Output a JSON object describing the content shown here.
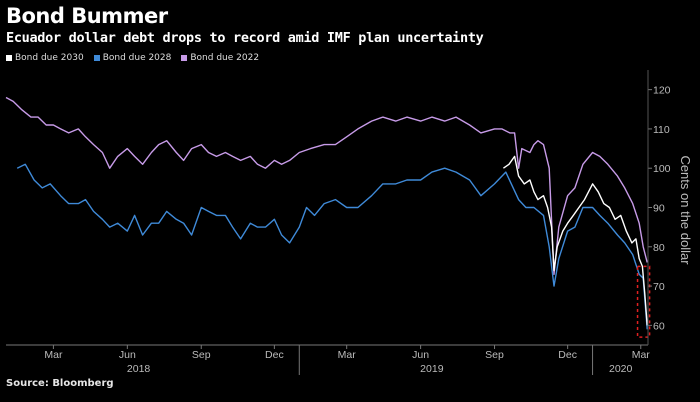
{
  "header": {
    "title": "Bond Bummer",
    "subtitle": "Ecuador dollar debt drops to record amid IMF plan uncertainty"
  },
  "source": "Source: Bloomberg",
  "chart_data": {
    "type": "line",
    "title": "Bond Bummer",
    "subtitle": "Ecuador dollar debt drops to record amid IMF plan uncertainty",
    "ylabel": "Cents on the dollar",
    "ylim": [
      55,
      125
    ],
    "yticks": [
      60,
      70,
      80,
      90,
      100,
      110,
      120
    ],
    "xlim": [
      "2018-01-01",
      "2020-03-10"
    ],
    "month_ticks": [
      {
        "label": "Mar",
        "date": "2018-03-01"
      },
      {
        "label": "Jun",
        "date": "2018-06-01"
      },
      {
        "label": "Sep",
        "date": "2018-09-01"
      },
      {
        "label": "Dec",
        "date": "2018-12-01"
      },
      {
        "label": "Mar",
        "date": "2019-03-01"
      },
      {
        "label": "Jun",
        "date": "2019-06-01"
      },
      {
        "label": "Sep",
        "date": "2019-09-01"
      },
      {
        "label": "Dec",
        "date": "2019-12-01"
      },
      {
        "label": "Mar",
        "date": "2020-03-01"
      }
    ],
    "year_ticks": [
      {
        "label": "2018",
        "date": "2018-06-15"
      },
      {
        "label": "2019",
        "date": "2019-06-15"
      },
      {
        "label": "2020",
        "date": "2020-02-05"
      }
    ],
    "year_dividers": [
      "2019-01-01",
      "2020-01-01"
    ],
    "y_axis_position": "right",
    "legend_position": "top-left",
    "grid": false,
    "series": [
      {
        "name": "Bond due 2030",
        "color": "#ffffff",
        "points": [
          [
            "2019-09-12",
            100
          ],
          [
            "2019-09-19",
            101
          ],
          [
            "2019-09-26",
            103
          ],
          [
            "2019-10-01",
            98
          ],
          [
            "2019-10-08",
            96
          ],
          [
            "2019-10-15",
            97
          ],
          [
            "2019-10-20",
            94
          ],
          [
            "2019-10-25",
            92
          ],
          [
            "2019-11-01",
            93
          ],
          [
            "2019-11-06",
            90
          ],
          [
            "2019-11-11",
            85
          ],
          [
            "2019-11-14",
            74
          ],
          [
            "2019-11-18",
            80
          ],
          [
            "2019-11-25",
            84
          ],
          [
            "2019-12-01",
            86
          ],
          [
            "2019-12-08",
            88
          ],
          [
            "2019-12-15",
            90
          ],
          [
            "2019-12-22",
            92
          ],
          [
            "2020-01-01",
            96
          ],
          [
            "2020-01-08",
            94
          ],
          [
            "2020-01-15",
            91
          ],
          [
            "2020-01-22",
            90
          ],
          [
            "2020-01-29",
            87
          ],
          [
            "2020-02-05",
            88
          ],
          [
            "2020-02-12",
            84
          ],
          [
            "2020-02-19",
            81
          ],
          [
            "2020-02-24",
            82
          ],
          [
            "2020-02-28",
            77
          ],
          [
            "2020-03-03",
            75
          ],
          [
            "2020-03-06",
            68
          ],
          [
            "2020-03-09",
            60
          ]
        ]
      },
      {
        "name": "Bond due 2028",
        "color": "#3f8ad8",
        "points": [
          [
            "2018-01-15",
            100
          ],
          [
            "2018-01-25",
            101
          ],
          [
            "2018-02-05",
            97
          ],
          [
            "2018-02-15",
            95
          ],
          [
            "2018-02-25",
            96
          ],
          [
            "2018-03-10",
            93
          ],
          [
            "2018-03-20",
            91
          ],
          [
            "2018-04-01",
            91
          ],
          [
            "2018-04-10",
            92
          ],
          [
            "2018-04-20",
            89
          ],
          [
            "2018-05-01",
            87
          ],
          [
            "2018-05-10",
            85
          ],
          [
            "2018-05-20",
            86
          ],
          [
            "2018-06-01",
            84
          ],
          [
            "2018-06-10",
            88
          ],
          [
            "2018-06-20",
            83
          ],
          [
            "2018-07-01",
            86
          ],
          [
            "2018-07-10",
            86
          ],
          [
            "2018-07-20",
            89
          ],
          [
            "2018-08-01",
            87
          ],
          [
            "2018-08-10",
            86
          ],
          [
            "2018-08-20",
            83
          ],
          [
            "2018-09-01",
            90
          ],
          [
            "2018-09-10",
            89
          ],
          [
            "2018-09-20",
            88
          ],
          [
            "2018-10-01",
            88
          ],
          [
            "2018-10-10",
            85
          ],
          [
            "2018-10-20",
            82
          ],
          [
            "2018-11-01",
            86
          ],
          [
            "2018-11-10",
            85
          ],
          [
            "2018-11-20",
            85
          ],
          [
            "2018-12-01",
            87
          ],
          [
            "2018-12-10",
            83
          ],
          [
            "2018-12-20",
            81
          ],
          [
            "2019-01-01",
            85
          ],
          [
            "2019-01-10",
            90
          ],
          [
            "2019-01-20",
            88
          ],
          [
            "2019-02-01",
            91
          ],
          [
            "2019-02-15",
            92
          ],
          [
            "2019-03-01",
            90
          ],
          [
            "2019-03-15",
            90
          ],
          [
            "2019-04-01",
            93
          ],
          [
            "2019-04-15",
            96
          ],
          [
            "2019-05-01",
            96
          ],
          [
            "2019-05-15",
            97
          ],
          [
            "2019-06-01",
            97
          ],
          [
            "2019-06-15",
            99
          ],
          [
            "2019-07-01",
            100
          ],
          [
            "2019-07-15",
            99
          ],
          [
            "2019-08-01",
            97
          ],
          [
            "2019-08-15",
            93
          ],
          [
            "2019-09-01",
            96
          ],
          [
            "2019-09-15",
            99
          ],
          [
            "2019-10-01",
            92
          ],
          [
            "2019-10-10",
            90
          ],
          [
            "2019-10-20",
            90
          ],
          [
            "2019-11-01",
            88
          ],
          [
            "2019-11-08",
            80
          ],
          [
            "2019-11-14",
            70
          ],
          [
            "2019-11-20",
            77
          ],
          [
            "2019-12-01",
            84
          ],
          [
            "2019-12-10",
            85
          ],
          [
            "2019-12-20",
            90
          ],
          [
            "2020-01-01",
            90
          ],
          [
            "2020-01-10",
            88
          ],
          [
            "2020-01-20",
            86
          ],
          [
            "2020-02-01",
            83
          ],
          [
            "2020-02-10",
            81
          ],
          [
            "2020-02-20",
            78
          ],
          [
            "2020-02-28",
            73
          ],
          [
            "2020-03-04",
            72
          ],
          [
            "2020-03-09",
            59
          ]
        ]
      },
      {
        "name": "Bond due 2022",
        "color": "#c79be8",
        "points": [
          [
            "2018-01-01",
            118
          ],
          [
            "2018-01-10",
            117
          ],
          [
            "2018-01-20",
            115
          ],
          [
            "2018-02-01",
            113
          ],
          [
            "2018-02-10",
            113
          ],
          [
            "2018-02-20",
            111
          ],
          [
            "2018-03-01",
            111
          ],
          [
            "2018-03-10",
            110
          ],
          [
            "2018-03-20",
            109
          ],
          [
            "2018-04-01",
            110
          ],
          [
            "2018-04-10",
            108
          ],
          [
            "2018-04-20",
            106
          ],
          [
            "2018-05-01",
            104
          ],
          [
            "2018-05-10",
            100
          ],
          [
            "2018-05-20",
            103
          ],
          [
            "2018-06-01",
            105
          ],
          [
            "2018-06-10",
            103
          ],
          [
            "2018-06-20",
            101
          ],
          [
            "2018-07-01",
            104
          ],
          [
            "2018-07-10",
            106
          ],
          [
            "2018-07-20",
            107
          ],
          [
            "2018-08-01",
            104
          ],
          [
            "2018-08-10",
            102
          ],
          [
            "2018-08-20",
            105
          ],
          [
            "2018-09-01",
            106
          ],
          [
            "2018-09-10",
            104
          ],
          [
            "2018-09-20",
            103
          ],
          [
            "2018-10-01",
            104
          ],
          [
            "2018-10-10",
            103
          ],
          [
            "2018-10-20",
            102
          ],
          [
            "2018-11-01",
            103
          ],
          [
            "2018-11-10",
            101
          ],
          [
            "2018-11-20",
            100
          ],
          [
            "2018-12-01",
            102
          ],
          [
            "2018-12-10",
            101
          ],
          [
            "2018-12-20",
            102
          ],
          [
            "2019-01-01",
            104
          ],
          [
            "2019-01-15",
            105
          ],
          [
            "2019-02-01",
            106
          ],
          [
            "2019-02-15",
            106
          ],
          [
            "2019-03-01",
            108
          ],
          [
            "2019-03-15",
            110
          ],
          [
            "2019-04-01",
            112
          ],
          [
            "2019-04-15",
            113
          ],
          [
            "2019-05-01",
            112
          ],
          [
            "2019-05-15",
            113
          ],
          [
            "2019-06-01",
            112
          ],
          [
            "2019-06-15",
            113
          ],
          [
            "2019-07-01",
            112
          ],
          [
            "2019-07-15",
            113
          ],
          [
            "2019-08-01",
            111
          ],
          [
            "2019-08-15",
            109
          ],
          [
            "2019-09-01",
            110
          ],
          [
            "2019-09-10",
            110
          ],
          [
            "2019-09-20",
            109
          ],
          [
            "2019-09-26",
            109
          ],
          [
            "2019-10-01",
            100
          ],
          [
            "2019-10-05",
            105
          ],
          [
            "2019-10-15",
            104
          ],
          [
            "2019-10-20",
            106
          ],
          [
            "2019-10-25",
            107
          ],
          [
            "2019-11-01",
            106
          ],
          [
            "2019-11-08",
            100
          ],
          [
            "2019-11-14",
            73
          ],
          [
            "2019-11-20",
            85
          ],
          [
            "2019-12-01",
            93
          ],
          [
            "2019-12-10",
            95
          ],
          [
            "2019-12-20",
            101
          ],
          [
            "2020-01-01",
            104
          ],
          [
            "2020-01-10",
            103
          ],
          [
            "2020-01-20",
            101
          ],
          [
            "2020-02-01",
            98
          ],
          [
            "2020-02-10",
            95
          ],
          [
            "2020-02-20",
            91
          ],
          [
            "2020-02-28",
            86
          ],
          [
            "2020-03-04",
            80
          ],
          [
            "2020-03-09",
            76
          ]
        ]
      }
    ],
    "annotation": {
      "type": "dashed-rect",
      "color": "#e02020",
      "x0": "2020-02-26",
      "x1": "2020-03-12",
      "y0": 57,
      "y1": 75
    }
  }
}
